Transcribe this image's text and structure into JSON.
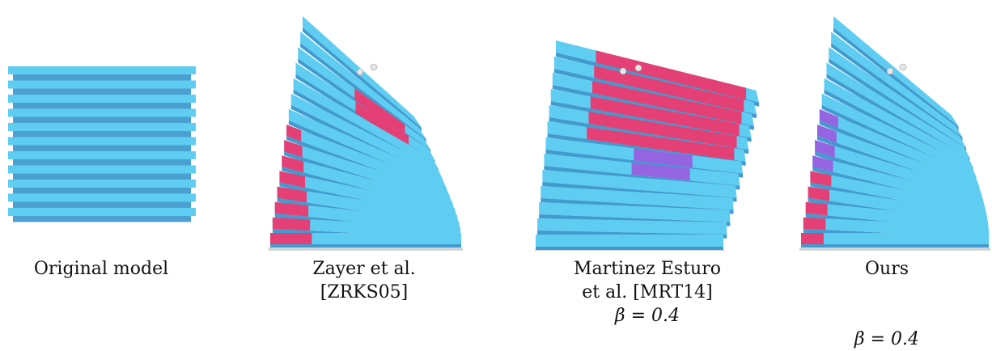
{
  "figure": {
    "panels": [
      {
        "id": "original",
        "caption_lines": [
          "Original model"
        ],
        "beta": ""
      },
      {
        "id": "zayer",
        "caption_lines": [
          "Zayer et al.",
          "[ZRKS05]"
        ],
        "beta": ""
      },
      {
        "id": "martinez",
        "caption_lines": [
          "Martinez Esturo",
          "et al. [MRT14]"
        ],
        "beta": "β = 0.4"
      },
      {
        "id": "ours",
        "caption_lines": [
          "Ours"
        ],
        "beta": "β = 0.4"
      }
    ],
    "colors": {
      "slab_light": "#5fcdf2",
      "slab_mid": "#3fb6e8",
      "slab_dark": "#2d8fc9",
      "strain_high": "#f0346b",
      "strain_mid": "#9a5ce0",
      "base": "#cfd6db"
    }
  }
}
